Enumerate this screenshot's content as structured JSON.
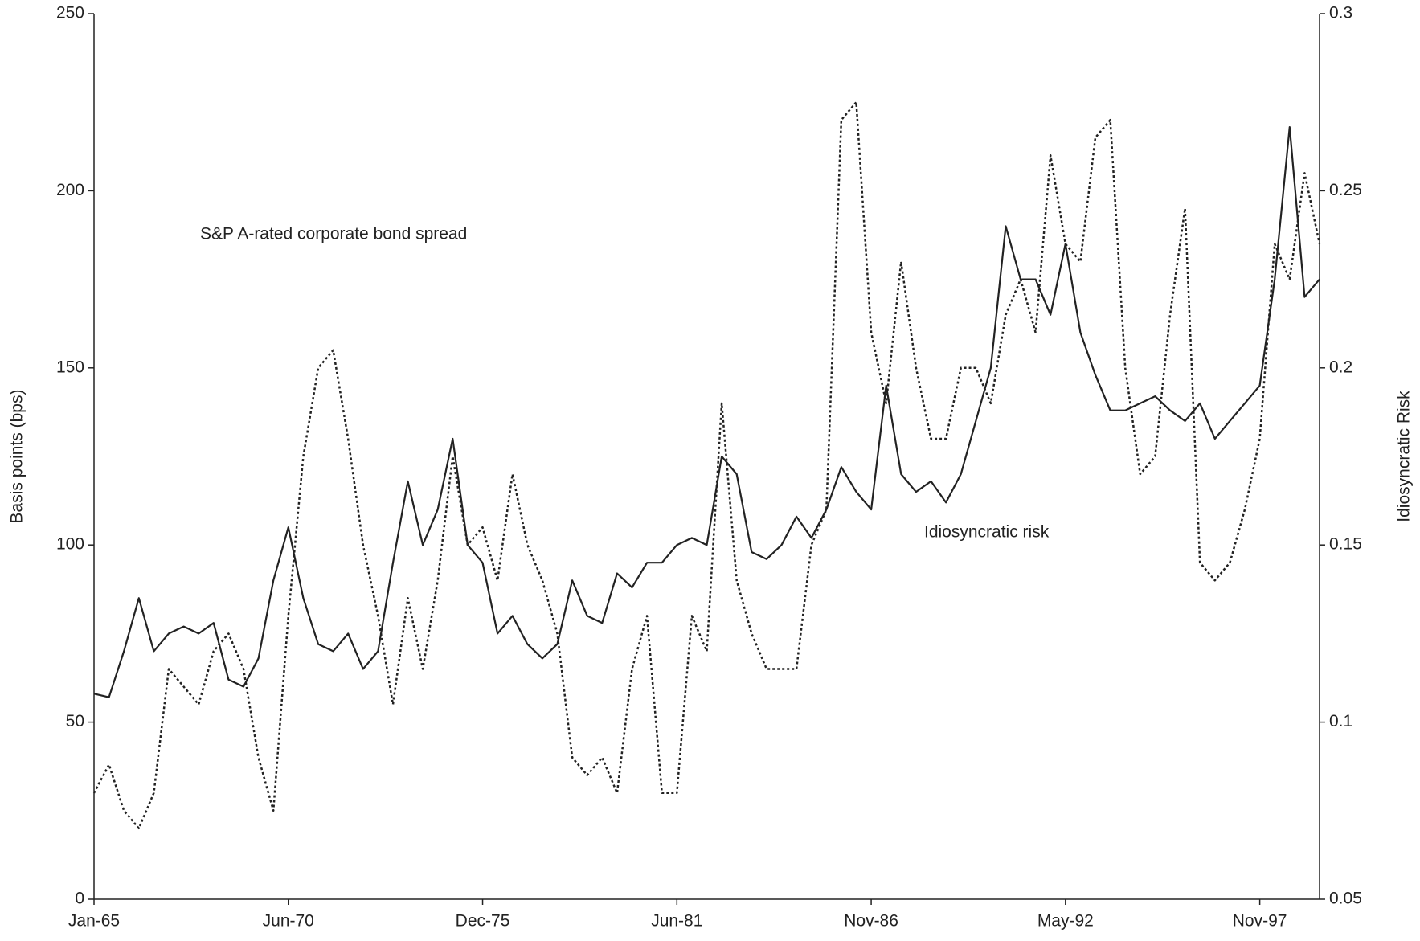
{
  "chart_data": {
    "type": "line",
    "y_label": "Basis points (bps)",
    "y2_label": "Idiosyncratic Risk",
    "categories": [
      "Jan-65",
      null,
      null,
      null,
      null,
      null,
      null,
      null,
      null,
      null,
      null,
      null,
      null,
      "Jun-70",
      null,
      null,
      null,
      null,
      null,
      null,
      null,
      null,
      null,
      null,
      null,
      null,
      "Dec-75",
      null,
      null,
      null,
      null,
      null,
      null,
      null,
      null,
      null,
      null,
      null,
      null,
      "Jun-81",
      null,
      null,
      null,
      null,
      null,
      null,
      null,
      null,
      null,
      null,
      null,
      null,
      "Nov-86",
      null,
      null,
      null,
      null,
      null,
      null,
      null,
      null,
      null,
      null,
      null,
      null,
      "May-92",
      null,
      null,
      null,
      null,
      null,
      null,
      null,
      null,
      null,
      null,
      null,
      null,
      "Nov-97",
      null,
      null,
      null,
      null
    ],
    "series": [
      {
        "name": "S&P A-rated corporate bond spread",
        "color": "#222222",
        "dash": "dotted",
        "values": [
          30,
          38,
          25,
          20,
          30,
          65,
          60,
          55,
          70,
          75,
          65,
          40,
          25,
          80,
          125,
          150,
          155,
          130,
          100,
          80,
          55,
          85,
          65,
          90,
          125,
          100,
          105,
          90,
          120,
          100,
          90,
          75,
          40,
          35,
          40,
          30,
          65,
          80,
          30,
          30,
          80,
          70,
          140,
          90,
          75,
          65,
          65,
          65,
          100,
          110,
          220,
          225,
          160,
          140,
          180,
          150,
          130,
          130,
          150,
          150,
          140,
          165,
          175,
          160,
          210,
          185,
          180,
          215,
          220,
          150,
          120,
          125,
          165,
          195,
          95,
          90,
          95,
          110,
          130,
          185,
          175,
          205,
          185
        ]
      },
      {
        "name": "Idiosyncratic risk",
        "color": "#222222",
        "dash": "solid",
        "axis": "y2",
        "values": [
          0.108,
          0.107,
          0.12,
          0.135,
          0.12,
          0.125,
          0.127,
          0.125,
          0.128,
          0.112,
          0.11,
          0.118,
          0.14,
          0.155,
          0.135,
          0.122,
          0.12,
          0.125,
          0.115,
          0.12,
          0.145,
          0.168,
          0.15,
          0.16,
          0.18,
          0.15,
          0.145,
          0.125,
          0.13,
          0.122,
          0.118,
          0.122,
          0.14,
          0.13,
          0.128,
          0.142,
          0.138,
          0.145,
          0.145,
          0.15,
          0.152,
          0.15,
          0.175,
          0.17,
          0.148,
          0.146,
          0.15,
          0.158,
          0.152,
          0.16,
          0.172,
          0.165,
          0.16,
          0.195,
          0.17,
          0.165,
          0.168,
          0.162,
          0.17,
          0.185,
          0.2,
          0.24,
          0.225,
          0.225,
          0.215,
          0.235,
          0.21,
          0.198,
          0.188,
          0.188,
          0.19,
          0.192,
          0.188,
          0.185,
          0.19,
          0.18,
          0.185,
          0.19,
          0.195,
          0.225,
          0.268,
          0.22,
          0.225
        ]
      }
    ],
    "ylim": [
      0,
      250
    ],
    "yticks": [
      0,
      50,
      100,
      150,
      200,
      250
    ],
    "y2lim": [
      0.05,
      0.3
    ],
    "y2ticks": [
      0.05,
      0.1,
      0.15,
      0.2,
      0.25,
      0.3
    ]
  }
}
